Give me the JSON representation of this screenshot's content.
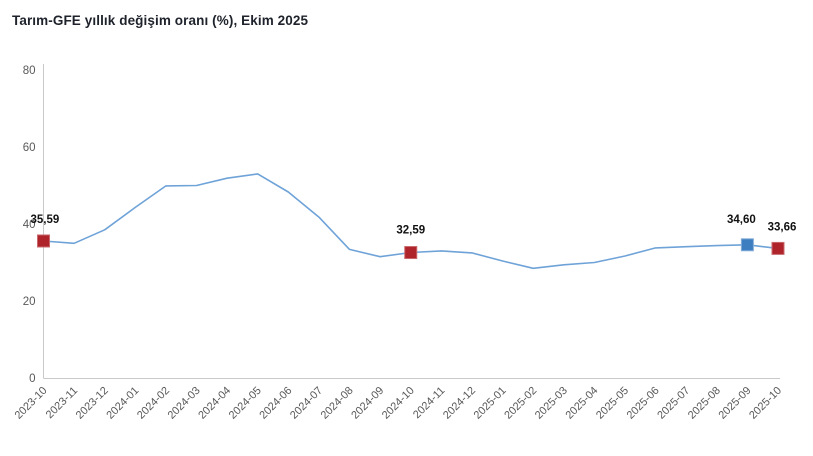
{
  "title": "Tarım-GFE yıllık değişim oranı (%), Ekim 2025",
  "colors": {
    "title": "#1e222b",
    "line": "#6fa3d8",
    "marker_red_fill": "#af232a",
    "marker_red_edge": "#c8696d",
    "marker_blue_fill": "#3c7ebf",
    "marker_blue_edge": "#85aed9",
    "axis_line": "#c9c9c9",
    "tick_label": "#595959",
    "data_label": "#111111"
  },
  "chart_data": {
    "type": "line",
    "title": "Tarım-GFE yıllık değişim oranı (%), Ekim 2025",
    "x": [
      "2023-10",
      "2023-11",
      "2023-12",
      "2024-01",
      "2024-02",
      "2024-03",
      "2024-04",
      "2024-05",
      "2024-06",
      "2024-07",
      "2024-08",
      "2024-09",
      "2024-10",
      "2024-11",
      "2024-12",
      "2025-01",
      "2025-02",
      "2025-03",
      "2025-04",
      "2025-05",
      "2025-06",
      "2025-07",
      "2025-08",
      "2025-09",
      "2025-10"
    ],
    "values": [
      35.59,
      35.0,
      38.5,
      44.3,
      49.9,
      50.0,
      51.9,
      53.0,
      48.3,
      41.8,
      33.4,
      31.5,
      32.59,
      33.0,
      32.5,
      30.4,
      28.5,
      29.4,
      30.0,
      31.7,
      33.8,
      34.1,
      34.4,
      34.6,
      33.66
    ],
    "ylim": [
      0,
      80
    ],
    "yticks": [
      0,
      20,
      40,
      60,
      80
    ],
    "xlabel": "",
    "ylabel": "",
    "grid": false,
    "legend": null,
    "annotated_points": [
      {
        "x": "2023-10",
        "index": 0,
        "value": 35.59,
        "label": "35,59",
        "marker": "red"
      },
      {
        "x": "2024-10",
        "index": 12,
        "value": 32.59,
        "label": "32,59",
        "marker": "red"
      },
      {
        "x": "2025-09",
        "index": 23,
        "value": 34.6,
        "label": "34,60",
        "marker": "blue"
      },
      {
        "x": "2025-10",
        "index": 24,
        "value": 33.66,
        "label": "33,66",
        "marker": "red"
      }
    ]
  }
}
